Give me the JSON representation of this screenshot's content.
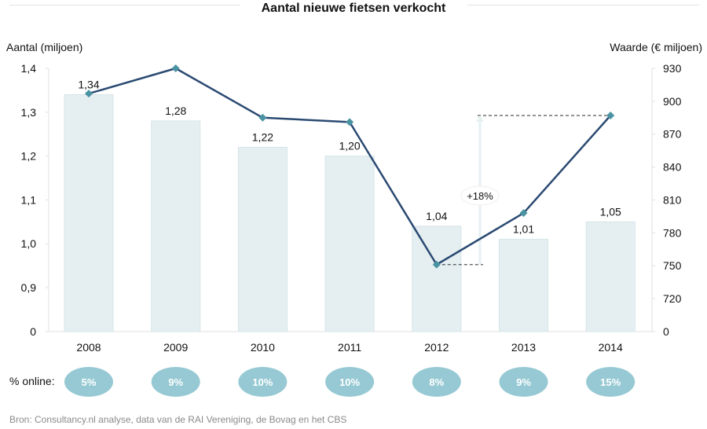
{
  "chart_data": {
    "type": "bar+line",
    "title": "Aantal nieuwe fietsen verkocht",
    "categories": [
      "2008",
      "2009",
      "2010",
      "2011",
      "2012",
      "2013",
      "2014"
    ],
    "series": [
      {
        "name": "Aantal (miljoen)",
        "kind": "bar",
        "axis": "left",
        "values": [
          1.34,
          1.28,
          1.22,
          1.2,
          1.04,
          1.01,
          1.05
        ],
        "labels": [
          "1,34",
          "1,28",
          "1,22",
          "1,20",
          "1,04",
          "1,01",
          "1,05"
        ]
      },
      {
        "name": "Waarde (€ miljoen)",
        "kind": "line",
        "axis": "right",
        "values": [
          907,
          930,
          885,
          881,
          751,
          798,
          887
        ]
      }
    ],
    "left_axis": {
      "label": "Aantal (miljoen)",
      "ticks": [
        "1,4",
        "1,3",
        "1,2",
        "1,1",
        "1,0",
        "0,9",
        "0"
      ],
      "tick_values": [
        1.4,
        1.3,
        1.2,
        1.1,
        1.0,
        0.9,
        0
      ],
      "range": [
        0.85,
        1.4
      ],
      "broken": true
    },
    "right_axis": {
      "label": "Waarde (€ miljoen)",
      "ticks": [
        "930",
        "900",
        "870",
        "840",
        "810",
        "780",
        "750",
        "720",
        "0"
      ],
      "tick_values": [
        930,
        900,
        870,
        840,
        810,
        780,
        750,
        720,
        0
      ],
      "range": [
        690,
        930
      ],
      "broken": true
    },
    "annotation": {
      "text": "+18%",
      "from_category": "2012",
      "to_category": "2014"
    },
    "online_share": {
      "label": "% online:",
      "values": [
        "5%",
        "9%",
        "10%",
        "10%",
        "8%",
        "9%",
        "15%"
      ]
    },
    "grid": false,
    "colors": {
      "bar": "#e5eff1",
      "bar_stroke": "#d6e4e8",
      "line": "#2b4a72",
      "marker": "#4a93a3",
      "bubble": "#96c9d3",
      "bubble_text": "#ffffff",
      "dash": "#555555"
    }
  },
  "footer": {
    "source": "Bron: Consultancy.nl analyse, data van de RAI Vereniging, de Bovag en het CBS"
  }
}
